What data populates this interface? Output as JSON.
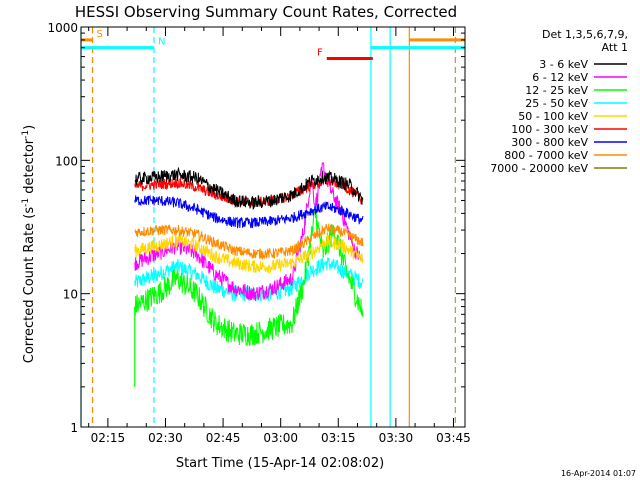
{
  "chart_data": {
    "type": "line",
    "title": "HESSI Observing Summary Count Rates, Corrected",
    "xlabel": "Start Time (15-Apr-14 02:08:02)",
    "ylabel": "Corrected Count Rate (s⁻¹ detector⁻¹)",
    "yscale": "log",
    "ylim": [
      1,
      1000
    ],
    "xlim_minutes_after_0208": [
      0,
      100
    ],
    "x_tick_labels": [
      "02:15",
      "02:30",
      "02:45",
      "03:00",
      "03:15",
      "03:30",
      "03:45"
    ],
    "x_tick_minutes": [
      7,
      22,
      37,
      52,
      67,
      82,
      97
    ],
    "y_tick_labels": [
      "1",
      "10",
      "100",
      "1000"
    ],
    "y_tick_values": [
      1,
      10,
      100,
      1000
    ],
    "data_window_minutes": [
      14,
      73.5
    ],
    "legend": {
      "header_line1": "Det 1,3,5,6,7,9,",
      "header_line2": "Att 1",
      "placement": "top-right, outside plot"
    },
    "series": [
      {
        "name": "3 - 6 keV",
        "color": "#000000",
        "points": [
          [
            14,
            72
          ],
          [
            20,
            75
          ],
          [
            25,
            78
          ],
          [
            30,
            74
          ],
          [
            35,
            60
          ],
          [
            40,
            50
          ],
          [
            45,
            48
          ],
          [
            50,
            50
          ],
          [
            55,
            55
          ],
          [
            60,
            70
          ],
          [
            63,
            75
          ],
          [
            66,
            72
          ],
          [
            70,
            65
          ],
          [
            73.5,
            50
          ]
        ]
      },
      {
        "name": "6 - 12 keV",
        "color": "#ff00ff",
        "points": [
          [
            14,
            17
          ],
          [
            20,
            20
          ],
          [
            25,
            23
          ],
          [
            30,
            20
          ],
          [
            35,
            14
          ],
          [
            40,
            11
          ],
          [
            45,
            10
          ],
          [
            50,
            11
          ],
          [
            55,
            13
          ],
          [
            58,
            30
          ],
          [
            60,
            75
          ],
          [
            61,
            45
          ],
          [
            63,
            90
          ],
          [
            65,
            60
          ],
          [
            68,
            40
          ],
          [
            71,
            22
          ],
          [
            73.5,
            17
          ]
        ]
      },
      {
        "name": "12 - 25 keV",
        "color": "#00ff00",
        "points": [
          [
            14,
            8
          ],
          [
            20,
            10
          ],
          [
            25,
            13
          ],
          [
            30,
            10
          ],
          [
            35,
            6
          ],
          [
            40,
            5
          ],
          [
            45,
            5
          ],
          [
            50,
            5.5
          ],
          [
            55,
            6
          ],
          [
            58,
            12
          ],
          [
            61,
            40
          ],
          [
            63,
            20
          ],
          [
            66,
            30
          ],
          [
            69,
            15
          ],
          [
            73.5,
            7
          ]
        ]
      },
      {
        "name": "25 - 50 keV",
        "color": "#00ffff",
        "points": [
          [
            14,
            12
          ],
          [
            20,
            14
          ],
          [
            25,
            16
          ],
          [
            30,
            14
          ],
          [
            35,
            11
          ],
          [
            40,
            10
          ],
          [
            45,
            10
          ],
          [
            50,
            10
          ],
          [
            55,
            11
          ],
          [
            60,
            15
          ],
          [
            64,
            17
          ],
          [
            68,
            15
          ],
          [
            73.5,
            12
          ]
        ]
      },
      {
        "name": "50 - 100 keV",
        "color": "#ffd700",
        "points": [
          [
            14,
            21
          ],
          [
            20,
            23
          ],
          [
            25,
            25
          ],
          [
            30,
            23
          ],
          [
            35,
            19
          ],
          [
            40,
            17
          ],
          [
            45,
            16
          ],
          [
            50,
            16
          ],
          [
            55,
            17
          ],
          [
            60,
            20
          ],
          [
            64,
            25
          ],
          [
            68,
            23
          ],
          [
            73.5,
            18
          ]
        ]
      },
      {
        "name": "100 - 300 keV",
        "color": "#ff0000",
        "points": [
          [
            14,
            64
          ],
          [
            20,
            66
          ],
          [
            25,
            68
          ],
          [
            30,
            63
          ],
          [
            35,
            55
          ],
          [
            40,
            50
          ],
          [
            45,
            48
          ],
          [
            50,
            50
          ],
          [
            55,
            55
          ],
          [
            60,
            65
          ],
          [
            64,
            70
          ],
          [
            68,
            66
          ],
          [
            73.5,
            50
          ]
        ]
      },
      {
        "name": "300 - 800 keV",
        "color": "#0000ff",
        "points": [
          [
            14,
            50
          ],
          [
            20,
            50
          ],
          [
            25,
            48
          ],
          [
            30,
            43
          ],
          [
            35,
            37
          ],
          [
            40,
            34
          ],
          [
            45,
            34
          ],
          [
            50,
            35
          ],
          [
            55,
            37
          ],
          [
            60,
            42
          ],
          [
            64,
            45
          ],
          [
            68,
            42
          ],
          [
            73.5,
            35
          ]
        ]
      },
      {
        "name": "800 - 7000 keV",
        "color": "#ff8c00",
        "points": [
          [
            14,
            29
          ],
          [
            20,
            30
          ],
          [
            25,
            30
          ],
          [
            30,
            28
          ],
          [
            35,
            24
          ],
          [
            40,
            21
          ],
          [
            45,
            20
          ],
          [
            50,
            20
          ],
          [
            55,
            21
          ],
          [
            60,
            26
          ],
          [
            64,
            31
          ],
          [
            68,
            29
          ],
          [
            73.5,
            24
          ]
        ]
      },
      {
        "name": "7000 - 20000 keV",
        "color": "#808000",
        "points": []
      }
    ],
    "flag_lines": [
      {
        "label": "S",
        "color": "#ff8c00",
        "y": 800,
        "x": [
          0,
          3
        ],
        "label_position": "left"
      },
      {
        "label": "",
        "color": "#ff8c00",
        "y": 800,
        "x": [
          85.5,
          100
        ]
      },
      {
        "label": "N",
        "color": "#00ffff",
        "y": 700,
        "x": [
          0,
          19
        ],
        "label_position": "right"
      },
      {
        "label": "",
        "color": "#00ffff",
        "y": 700,
        "x": [
          75.5,
          100
        ]
      },
      {
        "label": "F",
        "color": "#ff0000",
        "y": 580,
        "x": [
          64,
          76
        ],
        "label_position": "left"
      }
    ],
    "vertical_lines": [
      {
        "x": 0,
        "color": "#00ffff",
        "style": "solid"
      },
      {
        "x": 3,
        "color": "#ff8c00",
        "style": "dashed"
      },
      {
        "x": 19,
        "color": "#00ffff",
        "style": "dashed"
      },
      {
        "x": 75.5,
        "color": "#00ffff",
        "style": "solid"
      },
      {
        "x": 80.5,
        "color": "#00ffff",
        "style": "solid"
      },
      {
        "x": 85.5,
        "color": "#ff8c00",
        "style": "solid"
      },
      {
        "x": 97.5,
        "color": "#00ffff",
        "style": "dashed"
      },
      {
        "x": 97.5,
        "color": "#ff8c00",
        "style": "dashed"
      }
    ],
    "grid": false,
    "timestamp": "16-Apr-2014 01:07"
  }
}
